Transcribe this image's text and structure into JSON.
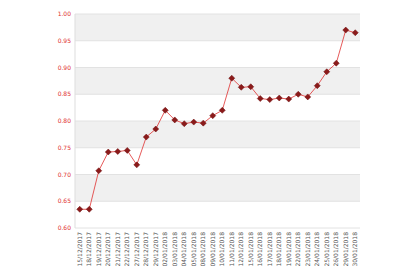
{
  "chart_data": {
    "type": "line",
    "categories": [
      "15/12/2017",
      "18/12/2017",
      "19/12/2017",
      "20/12/2017",
      "21/12/2017",
      "22/12/2017",
      "27/12/2017",
      "28/12/2017",
      "29/12/2017",
      "02/01/2018",
      "03/01/2018",
      "04/01/2018",
      "05/01/2018",
      "08/01/2018",
      "09/01/2018",
      "10/01/2018",
      "11/01/2018",
      "12/01/2018",
      "15/01/2018",
      "16/01/2018",
      "17/01/2018",
      "18/01/2018",
      "19/01/2018",
      "22/01/2018",
      "23/01/2018",
      "24/01/2018",
      "25/01/2018",
      "26/01/2018",
      "29/01/2018",
      "30/01/2018"
    ],
    "values": [
      0.635,
      0.635,
      0.707,
      0.742,
      0.743,
      0.745,
      0.718,
      0.77,
      0.785,
      0.82,
      0.802,
      0.795,
      0.798,
      0.796,
      0.81,
      0.82,
      0.88,
      0.863,
      0.864,
      0.842,
      0.84,
      0.843,
      0.841,
      0.85,
      0.845,
      0.866,
      0.892,
      0.908,
      0.97,
      0.965
    ],
    "color": "#e03030",
    "marker": "diamond",
    "ylim": [
      0.6,
      1.0
    ],
    "yticks": [
      {
        "value": 0.6,
        "label": "0.60"
      },
      {
        "value": 0.65,
        "label": "0.65"
      },
      {
        "value": 0.7,
        "label": "0.70"
      },
      {
        "value": 0.75,
        "label": "0.75"
      },
      {
        "value": 0.8,
        "label": "0.80"
      },
      {
        "value": 0.85,
        "label": "0.85"
      },
      {
        "value": 0.9,
        "label": "0.90"
      },
      {
        "value": 0.95,
        "label": "0.95"
      },
      {
        "value": 1.0,
        "label": "1.00"
      }
    ],
    "grid": true
  }
}
